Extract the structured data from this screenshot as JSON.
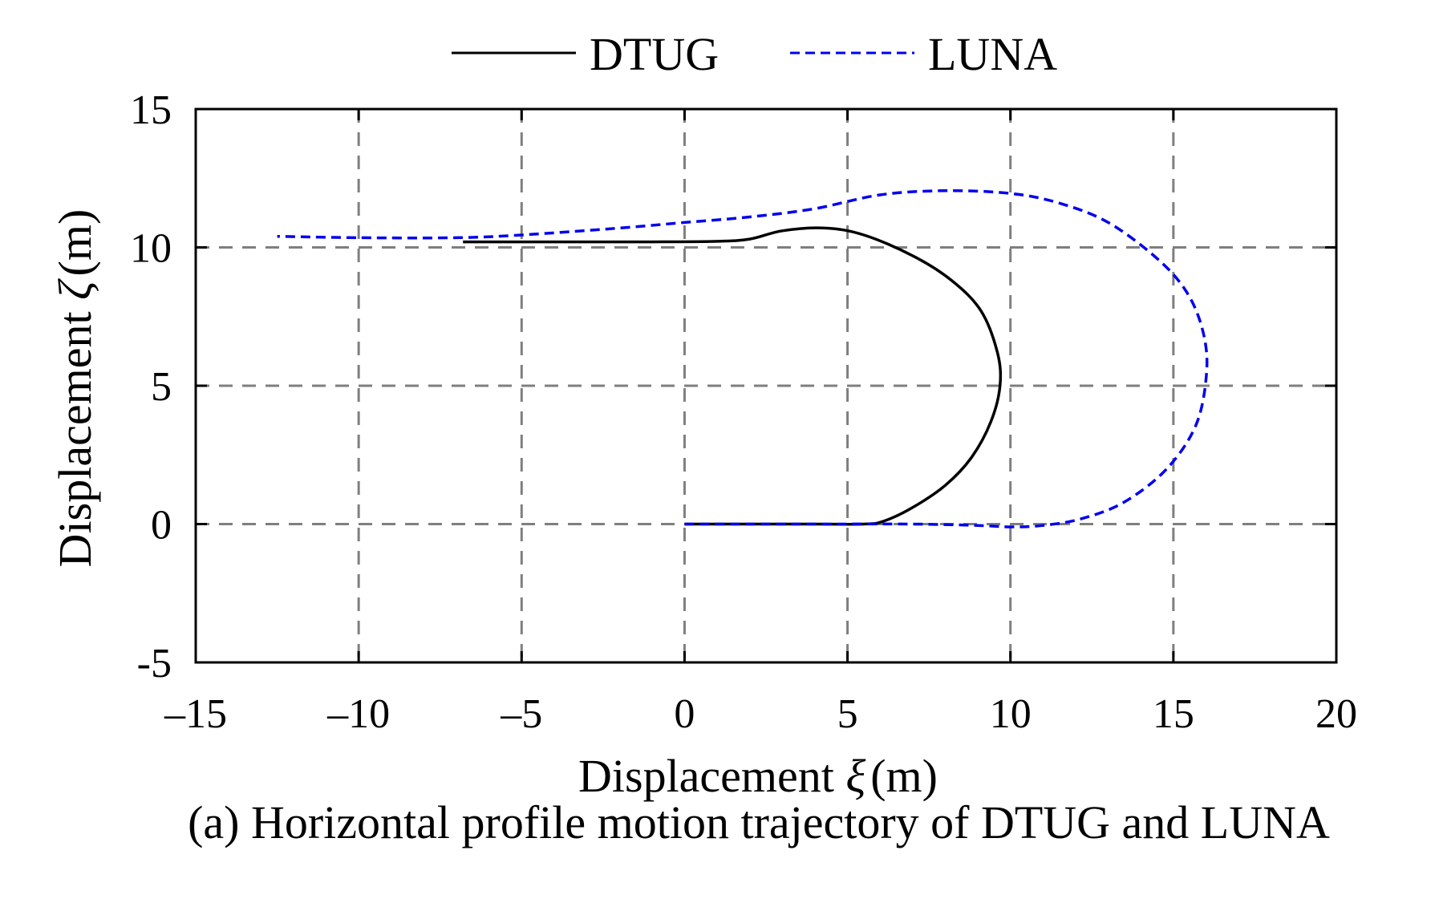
{
  "chart_data": {
    "type": "line",
    "caption": "(a) Horizontal profile motion trajectory of DTUG and LUNA",
    "xlabel_prefix": "Displacement ",
    "xlabel_symbol": "ξ",
    "xlabel_unit": "(m)",
    "ylabel_prefix": "Displacement ",
    "ylabel_symbol": "ζ",
    "ylabel_unit": "(m)",
    "xlim": [
      -15,
      20
    ],
    "ylim": [
      -5,
      15
    ],
    "xticks": [
      -15,
      -10,
      -5,
      0,
      5,
      10,
      15,
      20
    ],
    "xtick_labels": [
      "–15",
      "–10",
      "–5",
      "0",
      "5",
      "10",
      "15",
      "20"
    ],
    "yticks": [
      -5,
      0,
      5,
      10,
      15
    ],
    "ytick_labels": [
      "-5",
      "0",
      "5",
      "10",
      "15"
    ],
    "grid": true,
    "legend_position": "top-center",
    "series": [
      {
        "name": "DTUG",
        "color": "#000000",
        "style": "solid",
        "x": [
          0,
          2,
          4,
          5.5,
          6.1,
          7,
          8,
          8.8,
          9.4,
          9.68,
          9.6,
          9.1,
          8.2,
          7,
          5.5,
          4.3,
          3,
          2,
          1,
          -1,
          -3,
          -5,
          -6.8
        ],
        "y": [
          0,
          0,
          0,
          0,
          0.1,
          0.6,
          1.4,
          2.4,
          3.7,
          5,
          6.2,
          7.7,
          8.8,
          9.7,
          10.45,
          10.7,
          10.6,
          10.3,
          10.22,
          10.2,
          10.2,
          10.2,
          10.2
        ]
      },
      {
        "name": "LUNA",
        "color": "#0000ee",
        "style": "dashed",
        "x": [
          0,
          4,
          7,
          9,
          10,
          11,
          12.2,
          13.5,
          14.8,
          15.7,
          16.02,
          15.9,
          15.4,
          14.5,
          13,
          11.5,
          10,
          8,
          6,
          4,
          2,
          0,
          -2,
          -5,
          -7,
          -10,
          -12.5
        ],
        "y": [
          0,
          0,
          0,
          -0.05,
          -0.1,
          -0.05,
          0.2,
          0.8,
          2,
          3.6,
          5.5,
          7,
          8.4,
          9.6,
          10.9,
          11.6,
          11.95,
          12.05,
          11.9,
          11.4,
          11.1,
          10.9,
          10.7,
          10.45,
          10.35,
          10.35,
          10.4
        ]
      }
    ]
  }
}
